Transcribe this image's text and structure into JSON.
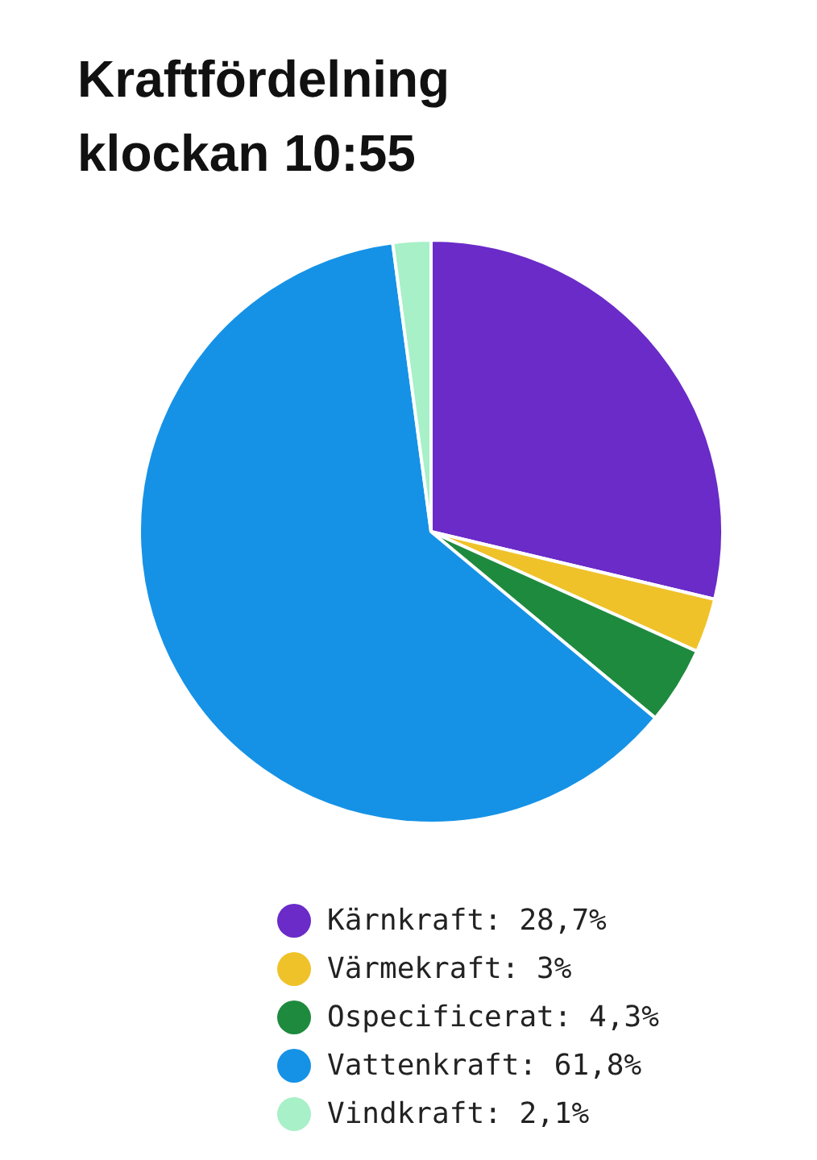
{
  "chart_data": {
    "type": "pie",
    "title": "Kraftfördelning klockan 10:55",
    "categories": [
      "Kärnkraft: 28,7%",
      "Värmekraft: 3%",
      "Ospecificerat: 4,3%",
      "Vattenkraft: 61,8%",
      "Vindkraft: 2,1%"
    ],
    "values": [
      28.7,
      3,
      4.3,
      61.8,
      2.1
    ],
    "colors": [
      "#6a2bc8",
      "#f0c22a",
      "#1e8a3e",
      "#1592e6",
      "#a8f0c8"
    ],
    "legend": "bottom"
  }
}
